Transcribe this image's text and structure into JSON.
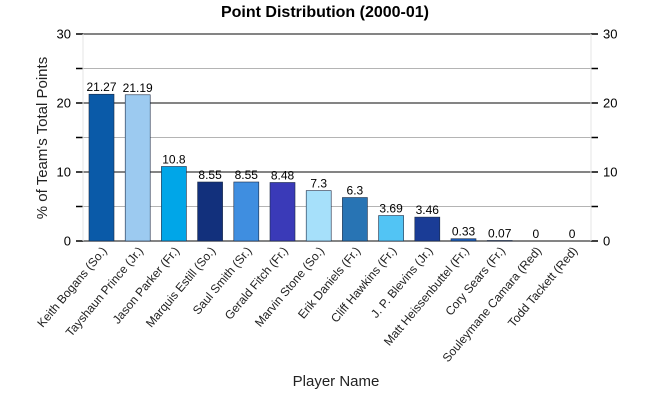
{
  "chart_data": {
    "type": "bar",
    "title": "Point Distribution (2000-01)",
    "xlabel": "Player Name",
    "ylabel": "% of Team's Total Points",
    "ylim": [
      0,
      30
    ],
    "yticks": [
      0,
      10,
      20,
      30
    ],
    "grid": true,
    "categories": [
      "Keith Bogans (So.)",
      "Tayshaun Prince (Jr.)",
      "Jason Parker (Fr.)",
      "Marquis Estill (So.)",
      "Saul Smith (Sr.)",
      "Gerald Fitch (Fr.)",
      "Marvin Stone (So.)",
      "Erik Daniels (Fr.)",
      "Cliff Hawkins (Fr.)",
      "J. P. Blevins (Jr.)",
      "Matt Heissenbuttel (Fr.)",
      "Cory Sears (Fr.)",
      "Souleymane Camara (Red)",
      "Todd Tackett (Red)"
    ],
    "values": [
      21.27,
      21.19,
      10.8,
      8.55,
      8.55,
      8.48,
      7.3,
      6.3,
      3.69,
      3.46,
      0.33,
      0.07,
      0,
      0
    ],
    "value_labels": [
      "21.27",
      "21.19",
      "10.8",
      "8.55",
      "8.55",
      "8.48",
      "7.3",
      "6.3",
      "3.69",
      "3.46",
      "0.33",
      "0.07",
      "0",
      "0"
    ],
    "colors": [
      "#0a5aa8",
      "#9ccaf0",
      "#00a6e8",
      "#12307c",
      "#3f8ee0",
      "#3a3ab8",
      "#a6e0fa",
      "#2874b4",
      "#52c4f4",
      "#1a3c96",
      "#1a5cb8",
      "#7ad0f6",
      "#4a70d6",
      "#2850c0"
    ]
  }
}
